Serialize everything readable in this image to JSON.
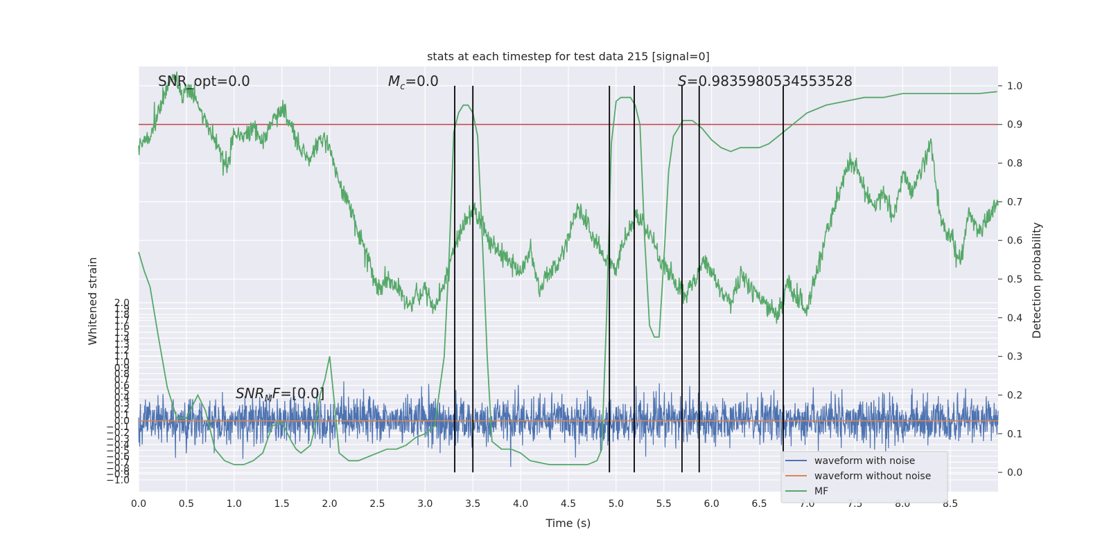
{
  "chart_data": {
    "type": "line",
    "title": "stats at each timestep for test data 215 [signal=0]",
    "xlabel": "Time (s)",
    "ylabel_left": "Whitened strain",
    "ylabel_right": "Detection probability",
    "xlim": [
      0.0,
      9.0
    ],
    "ylim_left": [
      -1.2,
      6.0
    ],
    "ylim_right": [
      -0.05,
      1.05
    ],
    "x_ticks": [
      "0.0",
      "0.5",
      "1.0",
      "1.5",
      "2.0",
      "2.5",
      "3.0",
      "3.5",
      "4.0",
      "4.5",
      "5.0",
      "5.5",
      "6.0",
      "6.5",
      "7.0",
      "7.5",
      "8.0",
      "8.5"
    ],
    "y_left_ticks": [
      "−1.0",
      "−0.9",
      "−0.8",
      "−0.7",
      "−0.6",
      "−0.5",
      "−0.4",
      "−0.3",
      "−0.2",
      "−0.1",
      "0.0",
      "0.1",
      "0.2",
      "0.3",
      "0.4",
      "0.5",
      "0.6",
      "0.7",
      "0.8",
      "0.9",
      "1.0",
      "1.1",
      "1.2",
      "1.3",
      "1.4",
      "1.5",
      "1.6",
      "1.7",
      "1.8",
      "1.9",
      "2.0"
    ],
    "y_right_ticks": [
      "0.0",
      "0.1",
      "0.2",
      "0.3",
      "0.4",
      "0.5",
      "0.6",
      "0.7",
      "0.8",
      "0.9",
      "1.0"
    ],
    "threshold": 0.9,
    "threshold_color": "#c44e52",
    "vlines": [
      3.31,
      3.5,
      4.93,
      5.19,
      5.69,
      5.87,
      6.75
    ],
    "annotations": {
      "snr_opt": "SNR_opt=0.0",
      "mc_sym": "M",
      "mc_sub": "c",
      "mc_val": "=0.0",
      "s_sym": "S",
      "s_val": "=0.9835980534553528",
      "snr_mf_sym": "SNR",
      "snr_mf_sub": "M",
      "snr_mf_sym2": "F",
      "snr_mf_val": "=[0.0]"
    },
    "series": [
      {
        "name": "waveform with noise",
        "color": "#4c72b0",
        "axis": "left",
        "amplitude_std": 0.2
      },
      {
        "name": "waveform without noise",
        "color": "#dd8452",
        "axis": "left",
        "value": 0.0
      },
      {
        "name": "MF",
        "color": "#55a868",
        "axis": "left",
        "x": [
          0.0,
          0.1,
          0.2,
          0.3,
          0.38,
          0.45,
          0.55,
          0.65,
          0.75,
          0.85,
          0.92,
          1.0,
          1.1,
          1.2,
          1.3,
          1.4,
          1.5,
          1.6,
          1.7,
          1.8,
          1.9,
          2.0,
          2.1,
          2.2,
          2.3,
          2.4,
          2.5,
          2.6,
          2.7,
          2.8,
          2.9,
          3.0,
          3.1,
          3.2,
          3.3,
          3.4,
          3.5,
          3.6,
          3.7,
          3.8,
          3.9,
          4.0,
          4.1,
          4.2,
          4.3,
          4.4,
          4.5,
          4.6,
          4.7,
          4.8,
          4.9,
          5.0,
          5.1,
          5.2,
          5.3,
          5.4,
          5.5,
          5.6,
          5.7,
          5.8,
          5.9,
          6.0,
          6.1,
          6.2,
          6.3,
          6.4,
          6.5,
          6.6,
          6.7,
          6.8,
          6.9,
          7.0,
          7.1,
          7.2,
          7.3,
          7.4,
          7.5,
          7.6,
          7.7,
          7.8,
          7.9,
          8.0,
          8.1,
          8.2,
          8.3,
          8.4,
          8.5,
          8.6,
          8.7,
          8.8,
          8.9,
          9.0
        ],
        "y": [
          4.7,
          4.8,
          5.2,
          5.6,
          5.9,
          5.5,
          5.6,
          5.2,
          4.9,
          4.6,
          4.3,
          4.9,
          4.8,
          5.0,
          4.7,
          5.1,
          5.3,
          5.0,
          4.6,
          4.4,
          4.8,
          4.6,
          4.0,
          3.7,
          3.2,
          2.8,
          2.2,
          2.4,
          2.3,
          2.0,
          2.1,
          2.2,
          1.9,
          2.3,
          2.9,
          3.3,
          3.6,
          3.3,
          3.0,
          2.8,
          2.7,
          2.5,
          2.9,
          2.2,
          2.5,
          2.7,
          3.1,
          3.6,
          3.3,
          3.0,
          2.7,
          2.6,
          3.1,
          3.5,
          3.3,
          3.0,
          2.6,
          2.4,
          2.1,
          2.3,
          2.7,
          2.5,
          2.2,
          2.0,
          2.5,
          2.3,
          2.1,
          1.9,
          1.8,
          2.4,
          2.0,
          1.9,
          2.5,
          3.2,
          3.7,
          4.2,
          4.4,
          3.9,
          3.6,
          3.9,
          3.4,
          4.2,
          3.9,
          4.3,
          4.7,
          3.4,
          3.1,
          2.7,
          3.5,
          3.2,
          3.4,
          3.7
        ]
      },
      {
        "name": "",
        "color": "#55a868",
        "axis": "right",
        "x": [
          0.0,
          0.06,
          0.12,
          0.2,
          0.3,
          0.4,
          0.5,
          0.56,
          0.62,
          0.7,
          0.8,
          0.9,
          1.0,
          1.1,
          1.2,
          1.3,
          1.4,
          1.5,
          1.6,
          1.65,
          1.7,
          1.8,
          1.85,
          1.9,
          1.95,
          2.0,
          2.05,
          2.1,
          2.2,
          2.3,
          2.4,
          2.5,
          2.6,
          2.7,
          2.8,
          2.9,
          3.0,
          3.1,
          3.2,
          3.25,
          3.3,
          3.35,
          3.4,
          3.45,
          3.5,
          3.55,
          3.6,
          3.65,
          3.7,
          3.8,
          3.9,
          4.0,
          4.1,
          4.3,
          4.5,
          4.6,
          4.7,
          4.8,
          4.85,
          4.9,
          4.95,
          5.0,
          5.05,
          5.15,
          5.2,
          5.25,
          5.3,
          5.35,
          5.4,
          5.45,
          5.5,
          5.55,
          5.6,
          5.7,
          5.8,
          5.9,
          6.0,
          6.1,
          6.2,
          6.3,
          6.4,
          6.5,
          6.6,
          6.7,
          6.8,
          6.9,
          7.0,
          7.2,
          7.4,
          7.6,
          7.8,
          8.0,
          8.2,
          8.4,
          8.6,
          8.8,
          8.99
        ],
        "y": [
          0.57,
          0.52,
          0.48,
          0.36,
          0.22,
          0.14,
          0.14,
          0.17,
          0.2,
          0.16,
          0.06,
          0.03,
          0.02,
          0.02,
          0.03,
          0.05,
          0.12,
          0.13,
          0.08,
          0.06,
          0.05,
          0.07,
          0.12,
          0.2,
          0.24,
          0.3,
          0.18,
          0.05,
          0.03,
          0.03,
          0.04,
          0.05,
          0.06,
          0.06,
          0.07,
          0.09,
          0.1,
          0.12,
          0.3,
          0.55,
          0.88,
          0.93,
          0.95,
          0.95,
          0.93,
          0.87,
          0.6,
          0.3,
          0.08,
          0.06,
          0.06,
          0.05,
          0.03,
          0.02,
          0.02,
          0.02,
          0.02,
          0.03,
          0.06,
          0.4,
          0.85,
          0.96,
          0.97,
          0.97,
          0.95,
          0.9,
          0.6,
          0.38,
          0.35,
          0.35,
          0.55,
          0.78,
          0.87,
          0.91,
          0.91,
          0.89,
          0.86,
          0.84,
          0.83,
          0.84,
          0.84,
          0.84,
          0.85,
          0.87,
          0.89,
          0.91,
          0.93,
          0.95,
          0.96,
          0.97,
          0.97,
          0.98,
          0.98,
          0.98,
          0.98,
          0.98,
          0.985
        ]
      }
    ],
    "legend": {
      "placement": "lower-right",
      "entries": [
        "waveform with noise",
        "waveform without noise",
        "MF"
      ]
    },
    "grid": true,
    "background": "#eaeaf2"
  }
}
